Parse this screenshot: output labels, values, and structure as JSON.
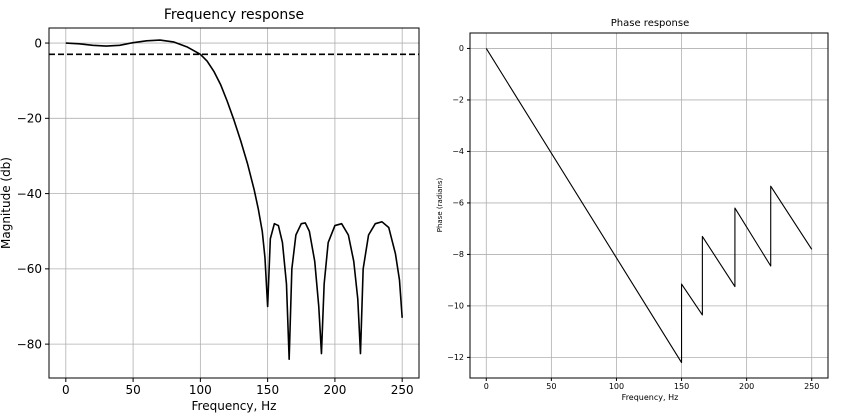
{
  "chart_data": [
    {
      "type": "line",
      "title": "Frequency response",
      "xlabel": "Frequency, Hz",
      "ylabel": "Magnitude (db)",
      "xlim": [
        -12.5,
        262.5
      ],
      "ylim": [
        -89,
        4
      ],
      "xticks": [
        0,
        50,
        100,
        150,
        200,
        250
      ],
      "yticks": [
        0,
        -20,
        -40,
        -60,
        -80
      ],
      "xtick_labels": [
        "0",
        "50",
        "100",
        "150",
        "200",
        "250"
      ],
      "ytick_labels": [
        "0",
        "−20",
        "−40",
        "−60",
        "−80"
      ],
      "grid": true,
      "reference_line": {
        "y": -3,
        "style": "dashed",
        "color": "#000000"
      },
      "series": [
        {
          "color": "#000000",
          "x": [
            0,
            10,
            20,
            30,
            40,
            50,
            60,
            70,
            80,
            90,
            100,
            105,
            110,
            115,
            120,
            125,
            130,
            135,
            140,
            143,
            146,
            148,
            150,
            152,
            155,
            158,
            161,
            164,
            166,
            168,
            171,
            175,
            178,
            181,
            185,
            188,
            190,
            192,
            195,
            200,
            205,
            210,
            214,
            217,
            219,
            221,
            225,
            230,
            235,
            240,
            245,
            248,
            250
          ],
          "y": [
            0,
            -0.2,
            -0.6,
            -0.8,
            -0.6,
            0.1,
            0.6,
            0.8,
            0.3,
            -1.0,
            -3.0,
            -4.8,
            -7.5,
            -11,
            -15.5,
            -20.5,
            -26,
            -32,
            -39,
            -44,
            -50,
            -57,
            -70,
            -52,
            -48,
            -48.5,
            -53,
            -64,
            -84,
            -60,
            -51,
            -48,
            -47.8,
            -50,
            -58,
            -70,
            -82.5,
            -64,
            -53,
            -48.5,
            -48,
            -51,
            -58,
            -68,
            -82.5,
            -60,
            -51,
            -48,
            -47.5,
            -49,
            -56,
            -63,
            -73
          ]
        }
      ]
    },
    {
      "type": "line",
      "title": "Phase response",
      "xlabel": "Frequency, Hz",
      "ylabel": "Phase (radians)",
      "xlim": [
        -12.5,
        262.5
      ],
      "ylim": [
        -12.8,
        0.6
      ],
      "xticks": [
        0,
        50,
        100,
        150,
        200,
        250
      ],
      "yticks": [
        0,
        -2,
        -4,
        -6,
        -8,
        -10,
        -12
      ],
      "xtick_labels": [
        "0",
        "50",
        "100",
        "150",
        "200",
        "250"
      ],
      "ytick_labels": [
        "0",
        "−2",
        "−4",
        "−6",
        "−8",
        "−10",
        "−12"
      ],
      "grid": true,
      "series": [
        {
          "color": "#000000",
          "x": [
            0,
            150,
            150,
            166,
            166,
            191,
            191,
            218.5,
            218.5,
            250
          ],
          "y": [
            0,
            -12.2,
            -9.15,
            -10.35,
            -7.3,
            -9.25,
            -6.2,
            -8.45,
            -5.35,
            -7.8
          ]
        }
      ]
    }
  ]
}
